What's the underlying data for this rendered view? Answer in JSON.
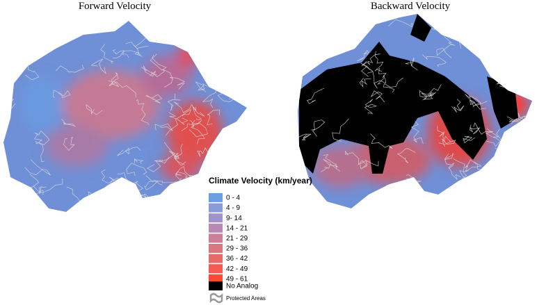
{
  "panels": [
    {
      "title": "Forward Velocity"
    },
    {
      "title": "Backward Velocity"
    }
  ],
  "legend": {
    "title": "Climate Velocity (km/year)",
    "items": [
      {
        "label": "0 - 4",
        "color": "#6c9fe2"
      },
      {
        "label": "4 - 9",
        "color": "#8b9bd8"
      },
      {
        "label": "9- 14",
        "color": "#a192c9"
      },
      {
        "label": "14 - 21",
        "color": "#b889b2"
      },
      {
        "label": "21 - 29",
        "color": "#c98098"
      },
      {
        "label": "29 - 36",
        "color": "#d9777f"
      },
      {
        "label": "36 - 42",
        "color": "#e76a69"
      },
      {
        "label": "42 - 49",
        "color": "#f25a52"
      },
      {
        "label": "49 - 61",
        "color": "#ff4838"
      }
    ],
    "no_analog": {
      "label": "No Analog",
      "color": "#000000"
    },
    "protected": {
      "label": "Protected Areas"
    }
  }
}
